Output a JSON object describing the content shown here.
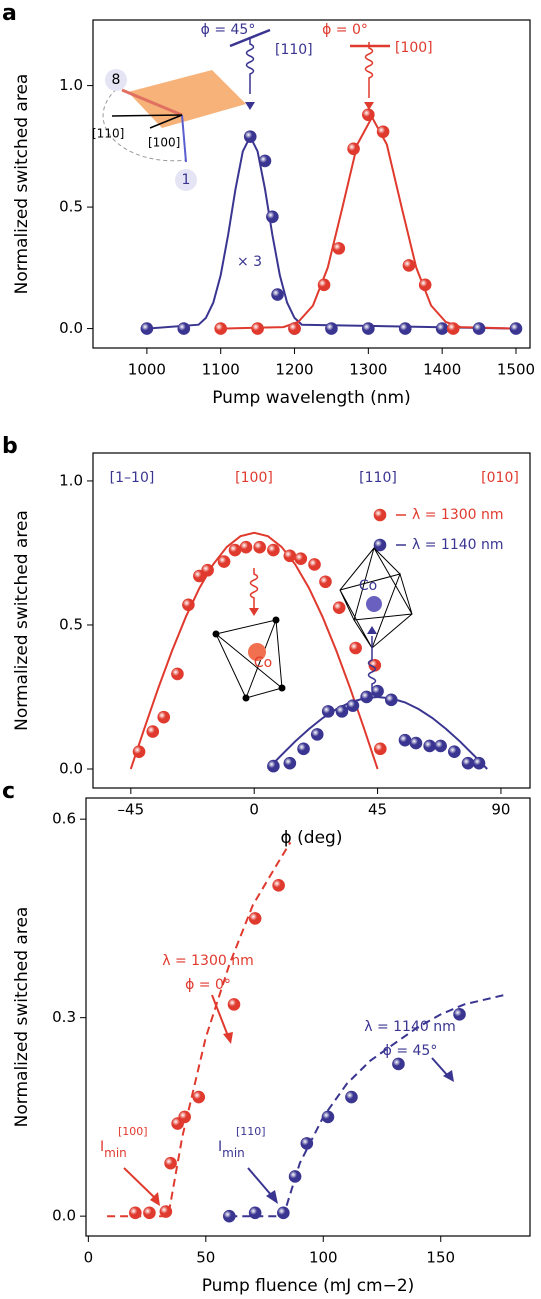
{
  "chart_data": [
    {
      "type": "scatter",
      "panel": "a",
      "x_label": "Pump wavelength (nm)",
      "y_label": "Normalized switched area",
      "xlim": [
        927,
        1519
      ],
      "ylim": [
        -0.08,
        1.27
      ],
      "xticks": [
        1000,
        1100,
        1200,
        1300,
        1400,
        1500
      ],
      "yticks": [
        {
          "value": 0,
          "label": "0.0"
        },
        {
          "value": 0.5,
          "label": "0.5"
        },
        {
          "value": 1,
          "label": "1.0"
        }
      ],
      "series": [
        {
          "color": "#3a3591",
          "style": "markers",
          "x": [
            1000,
            1050,
            1140,
            1160,
            1170,
            1177,
            1200,
            1250,
            1300,
            1350,
            1400,
            1450,
            1500
          ],
          "values": [
            0,
            0,
            0.79,
            0.69,
            0.46,
            0.14,
            0,
            0,
            0,
            0,
            0,
            0,
            0
          ]
        },
        {
          "color": "#3a3591",
          "style": "line",
          "x": [
            1000,
            1070,
            1080,
            1090,
            1100,
            1110,
            1120,
            1130,
            1140,
            1150,
            1160,
            1170,
            1180,
            1190,
            1200,
            1210,
            1500
          ],
          "values": [
            0,
            0.016,
            0.044,
            0.107,
            0.22,
            0.385,
            0.574,
            0.729,
            0.79,
            0.729,
            0.574,
            0.385,
            0.22,
            0.107,
            0.044,
            0.016,
            0
          ]
        },
        {
          "color": "#e03a2e",
          "style": "markers",
          "x": [
            1100,
            1150,
            1200,
            1240,
            1260,
            1280,
            1300,
            1320,
            1355,
            1377,
            1415
          ],
          "values": [
            0,
            0,
            0,
            0.18,
            0.33,
            0.74,
            0.88,
            0.81,
            0.26,
            0.18,
            0
          ]
        },
        {
          "color": "#e03a2e",
          "style": "line",
          "x": [
            1100,
            1185,
            1205,
            1225,
            1245,
            1265,
            1285,
            1305,
            1325,
            1345,
            1365,
            1385,
            1405,
            1425,
            1500
          ],
          "values": [
            0,
            0.006,
            0.027,
            0.095,
            0.25,
            0.5,
            0.758,
            0.87,
            0.758,
            0.5,
            0.25,
            0.095,
            0.027,
            0.006,
            0
          ]
        }
      ],
      "annotations": [
        "ϕ = 45°",
        "[110]",
        "ϕ = 0°",
        "[100]",
        "× 3",
        "8",
        "1",
        "[110]",
        "[100]"
      ]
    },
    {
      "type": "scatter",
      "panel": "b",
      "x_label": "ϕ (deg)",
      "y_label": "Normalized switched area",
      "xlim": [
        -58.8,
        100.6
      ],
      "ylim": [
        -0.066,
        1.097
      ],
      "xticks": [
        {
          "value": -45,
          "label": "–45"
        },
        0,
        45,
        90
      ],
      "yticks": [
        {
          "value": 0,
          "label": "0.0"
        },
        {
          "value": 0.5,
          "label": "0.5"
        },
        {
          "value": 1,
          "label": "1.0"
        }
      ],
      "legend": "upper right",
      "series": [
        {
          "name": "λ = 1300 nm",
          "color": "#e03a2e",
          "style": "markers",
          "x": [
            -42,
            -37,
            -33,
            -28,
            -24,
            -20,
            -17,
            -11,
            -7,
            -3,
            2,
            7,
            13,
            17,
            22,
            26,
            31,
            37,
            44,
            46
          ],
          "values": [
            0.06,
            0.13,
            0.18,
            0.33,
            0.57,
            0.67,
            0.69,
            0.72,
            0.76,
            0.77,
            0.77,
            0.76,
            0.74,
            0.73,
            0.71,
            0.65,
            0.56,
            0.42,
            0.36,
            0.07
          ]
        },
        {
          "name": "λ = 1140 nm",
          "color": "#3a3591",
          "style": "markers",
          "x": [
            7,
            13,
            18,
            23,
            27,
            32,
            36,
            41,
            45,
            50,
            55,
            59,
            64,
            68,
            73,
            78,
            82
          ],
          "values": [
            0.01,
            0.02,
            0.07,
            0.12,
            0.2,
            0.2,
            0.22,
            0.25,
            0.27,
            0.24,
            0.1,
            0.09,
            0.08,
            0.08,
            0.06,
            0.02,
            0.02
          ]
        },
        {
          "color": "#e03a2e",
          "style": "line",
          "x": [
            -45,
            -40,
            -35,
            -30,
            -25,
            -20,
            -15,
            -10,
            -5,
            0,
            5,
            10,
            15,
            20,
            25,
            30,
            35,
            40,
            45
          ],
          "values": [
            0,
            0.142,
            0.28,
            0.41,
            0.527,
            0.628,
            0.71,
            0.771,
            0.808,
            0.82,
            0.808,
            0.771,
            0.71,
            0.628,
            0.527,
            0.41,
            0.28,
            0.142,
            0
          ]
        },
        {
          "color": "#3a3591",
          "style": "line",
          "x": [
            5,
            10,
            15,
            20,
            25,
            30,
            35,
            40,
            45,
            50,
            55,
            60,
            65,
            70,
            75,
            80,
            85
          ],
          "values": [
            0,
            0.049,
            0.096,
            0.139,
            0.177,
            0.208,
            0.231,
            0.245,
            0.25,
            0.245,
            0.231,
            0.208,
            0.177,
            0.139,
            0.096,
            0.049,
            0
          ]
        }
      ],
      "annotations": [
        "[1–10]",
        "[100]",
        "[110]",
        "[010]",
        "Co",
        "Co"
      ]
    },
    {
      "type": "scatter",
      "panel": "c",
      "x_label": "Pump fluence (mJ cm−2)",
      "y_label": "Normalized switched area",
      "xlim": [
        -1,
        188
      ],
      "ylim": [
        -0.03,
        0.632
      ],
      "xticks": [
        0,
        50,
        100,
        150
      ],
      "yticks": [
        {
          "value": 0,
          "label": "0.0"
        },
        {
          "value": 0.3,
          "label": "0.3"
        },
        {
          "value": 0.6,
          "label": "0.6"
        }
      ],
      "series": [
        {
          "color": "#e03a2e",
          "style": "markers",
          "x": [
            20,
            26,
            33,
            35,
            38,
            41,
            47,
            62,
            71,
            81
          ],
          "values": [
            0.005,
            0.005,
            0.007,
            0.08,
            0.14,
            0.15,
            0.18,
            0.32,
            0.45,
            0.5
          ]
        },
        {
          "color": "#e03a2e",
          "style": "dashed",
          "x": [
            8,
            34,
            40,
            50,
            60,
            70,
            80,
            86
          ],
          "values": [
            0,
            0,
            0.12,
            0.27,
            0.38,
            0.47,
            0.53,
            0.565
          ]
        },
        {
          "color": "#3a3591",
          "style": "markers",
          "x": [
            60,
            71,
            83,
            88,
            93,
            102,
            112,
            132,
            158
          ],
          "values": [
            0,
            0.005,
            0.005,
            0.06,
            0.11,
            0.15,
            0.18,
            0.23,
            0.305
          ]
        },
        {
          "color": "#3a3591",
          "style": "dashed",
          "x": [
            60,
            83,
            90,
            100,
            110,
            120,
            130,
            140,
            150,
            160,
            178
          ],
          "values": [
            0,
            0,
            0.08,
            0.15,
            0.2,
            0.235,
            0.26,
            0.285,
            0.305,
            0.32,
            0.335
          ]
        }
      ],
      "annotations": [
        "λ = 1300 nm",
        "ϕ = 0°",
        "λ = 1140 nm",
        "ϕ = 45°",
        "I",
        "min",
        "[100]",
        "I",
        "min",
        "[110]"
      ]
    }
  ]
}
